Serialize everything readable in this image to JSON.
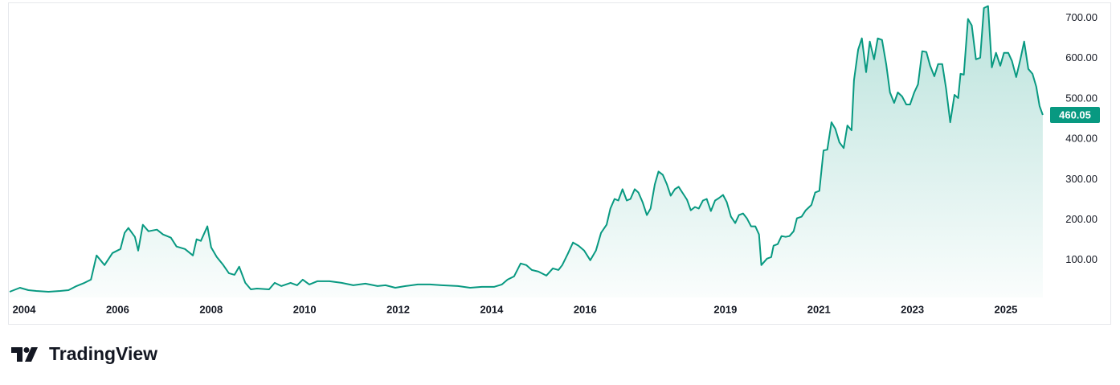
{
  "chart_data": {
    "type": "area",
    "color": "#089981",
    "logo": "TradingView",
    "x": [
      2003.69,
      2003.91,
      2004.09,
      2004.26,
      2004.52,
      2004.77,
      2004.95,
      2005.12,
      2005.29,
      2005.43,
      2005.55,
      2005.72,
      2005.89,
      2006.06,
      2006.15,
      2006.23,
      2006.37,
      2006.44,
      2006.54,
      2006.66,
      2006.84,
      2006.97,
      2007.14,
      2007.26,
      2007.44,
      2007.61,
      2007.69,
      2007.78,
      2007.92,
      2008.0,
      2008.12,
      2008.26,
      2008.38,
      2008.5,
      2008.6,
      2008.73,
      2008.85,
      2008.98,
      2009.24,
      2009.36,
      2009.5,
      2009.7,
      2009.84,
      2009.96,
      2010.1,
      2010.27,
      2010.53,
      2010.79,
      2011.04,
      2011.3,
      2011.56,
      2011.73,
      2011.94,
      2012.16,
      2012.42,
      2012.68,
      2012.93,
      2013.28,
      2013.54,
      2013.79,
      2014.05,
      2014.22,
      2014.34,
      2014.48,
      2014.62,
      2014.74,
      2014.86,
      2015.0,
      2015.17,
      2015.31,
      2015.43,
      2015.51,
      2015.63,
      2015.74,
      2015.86,
      2015.98,
      2016.11,
      2016.23,
      2016.34,
      2016.46,
      2016.54,
      2016.63,
      2016.71,
      2016.8,
      2016.89,
      2016.97,
      2017.06,
      2017.14,
      2017.23,
      2017.32,
      2017.4,
      2017.49,
      2017.57,
      2017.66,
      2017.75,
      2017.83,
      2017.92,
      2018.0,
      2018.09,
      2018.18,
      2018.26,
      2018.35,
      2018.43,
      2018.52,
      2018.6,
      2018.69,
      2018.78,
      2018.86,
      2018.95,
      2019.03,
      2019.12,
      2019.21,
      2019.29,
      2019.38,
      2019.46,
      2019.55,
      2019.64,
      2019.72,
      2019.77,
      2019.89,
      2019.98,
      2020.03,
      2020.12,
      2020.2,
      2020.29,
      2020.37,
      2020.46,
      2020.53,
      2020.63,
      2020.72,
      2020.84,
      2020.92,
      2021.01,
      2021.1,
      2021.18,
      2021.27,
      2021.35,
      2021.44,
      2021.53,
      2021.61,
      2021.7,
      2021.75,
      2021.84,
      2021.92,
      2022.01,
      2022.09,
      2022.18,
      2022.26,
      2022.35,
      2022.44,
      2022.52,
      2022.61,
      2022.69,
      2022.78,
      2022.87,
      2022.95,
      2023.04,
      2023.12,
      2023.21,
      2023.3,
      2023.38,
      2023.47,
      2023.55,
      2023.64,
      2023.72,
      2023.81,
      2023.9,
      2023.98,
      2024.03,
      2024.1,
      2024.19,
      2024.27,
      2024.36,
      2024.45,
      2024.53,
      2024.62,
      2024.7,
      2024.79,
      2024.88,
      2024.96,
      2025.05,
      2025.13,
      2025.22,
      2025.31,
      2025.39,
      2025.48,
      2025.57,
      2025.65,
      2025.72,
      2025.79
    ],
    "values": [
      22,
      32,
      26,
      24,
      22,
      24,
      26,
      36,
      44,
      52,
      112,
      88,
      118,
      128,
      168,
      180,
      158,
      124,
      188,
      172,
      176,
      164,
      156,
      134,
      128,
      112,
      152,
      148,
      184,
      132,
      108,
      88,
      68,
      64,
      84,
      44,
      28,
      30,
      28,
      44,
      36,
      44,
      38,
      52,
      40,
      48,
      48,
      44,
      38,
      42,
      36,
      38,
      32,
      36,
      40,
      40,
      38,
      36,
      32,
      34,
      34,
      40,
      52,
      60,
      92,
      88,
      76,
      72,
      62,
      80,
      76,
      88,
      116,
      144,
      136,
      124,
      100,
      124,
      168,
      188,
      228,
      252,
      248,
      276,
      248,
      252,
      276,
      268,
      244,
      212,
      228,
      288,
      320,
      312,
      288,
      260,
      276,
      282,
      266,
      250,
      224,
      232,
      228,
      248,
      252,
      222,
      248,
      254,
      262,
      244,
      208,
      192,
      212,
      216,
      204,
      184,
      184,
      164,
      88,
      104,
      108,
      136,
      140,
      160,
      158,
      160,
      172,
      204,
      208,
      224,
      237,
      268,
      272,
      372,
      374,
      442,
      426,
      392,
      378,
      434,
      422,
      546,
      622,
      650,
      566,
      642,
      598,
      650,
      646,
      586,
      516,
      490,
      516,
      506,
      486,
      486,
      516,
      536,
      618,
      616,
      582,
      556,
      586,
      586,
      526,
      442,
      510,
      502,
      562,
      560,
      698,
      682,
      598,
      602,
      725,
      730,
      578,
      614,
      582,
      614,
      614,
      594,
      554,
      598,
      642,
      574,
      562,
      530,
      482,
      460.05
    ],
    "xlim": [
      2003.69,
      2025.86
    ],
    "ylim": [
      8,
      735
    ],
    "xticks": [
      2004,
      2006,
      2008,
      2010,
      2012,
      2014,
      2016,
      2019,
      2021,
      2023,
      2025
    ],
    "yticks": [
      {
        "value": 100,
        "label": "100.00"
      },
      {
        "value": 200,
        "label": "200.00"
      },
      {
        "value": 300,
        "label": "300.00"
      },
      {
        "value": 400,
        "label": "400.00"
      },
      {
        "value": 500,
        "label": "500.00"
      },
      {
        "value": 600,
        "label": "600.00"
      },
      {
        "value": 700,
        "label": "700.00"
      }
    ]
  }
}
